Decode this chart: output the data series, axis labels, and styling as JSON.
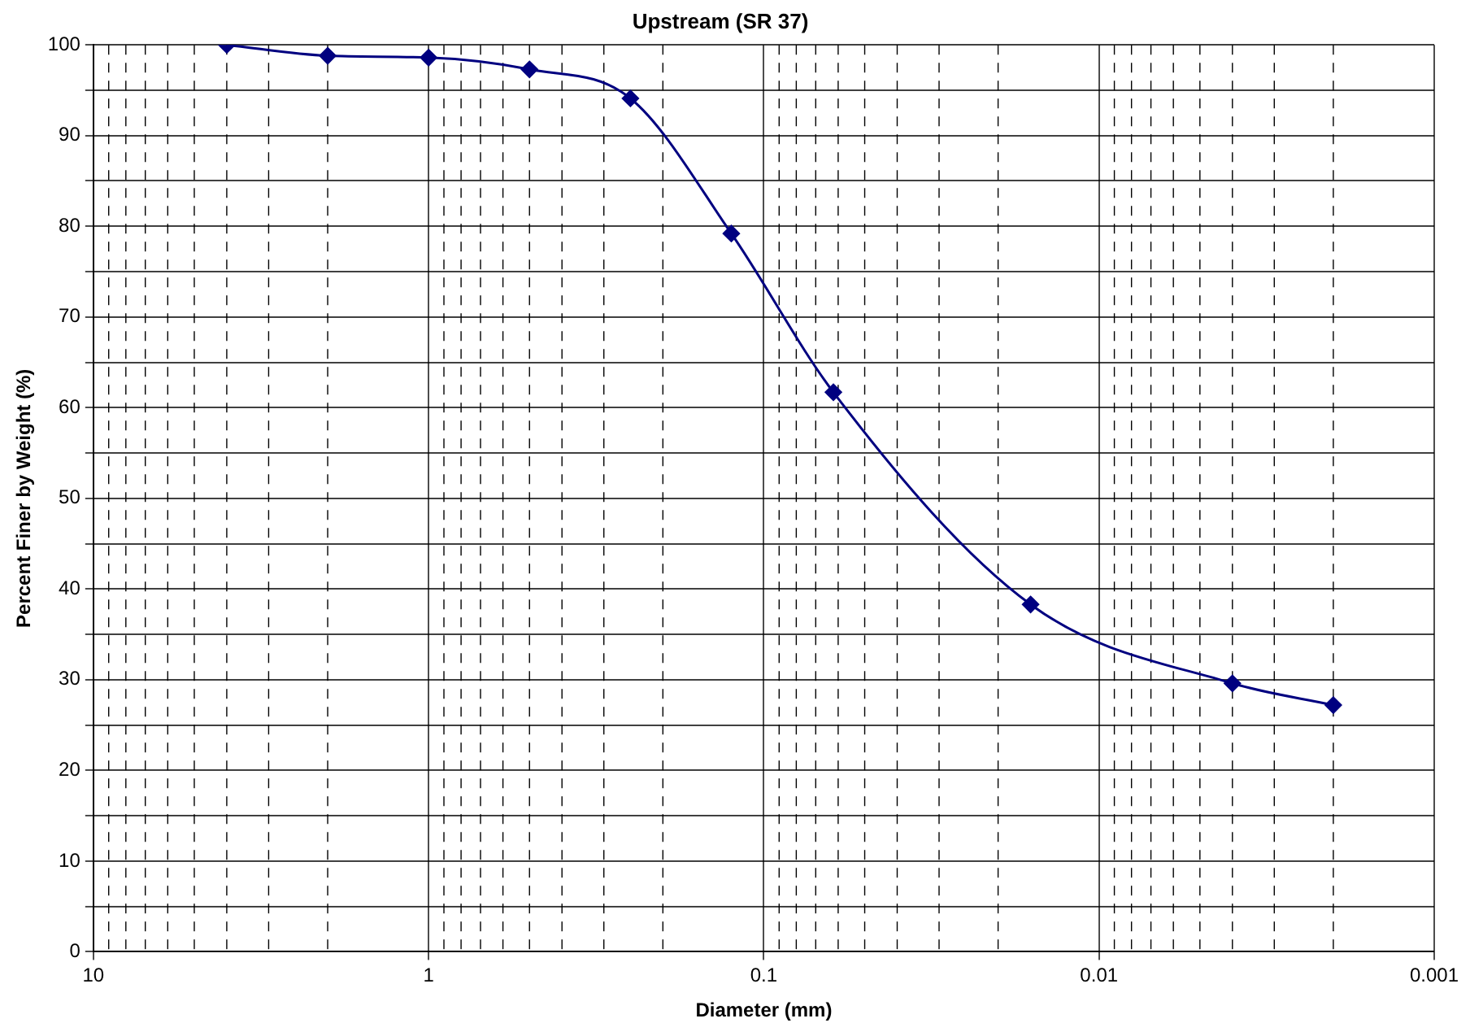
{
  "chart_data": {
    "type": "line",
    "title": "Upstream (SR 37)",
    "xlabel": "Diameter (mm)",
    "ylabel": "Percent Finer by Weight (%)",
    "x": [
      4,
      2,
      1,
      0.5,
      0.25,
      0.125,
      0.062,
      0.016,
      0.004,
      0.002
    ],
    "series": [
      {
        "color": "#000080",
        "values": [
          100,
          98.8,
          98.6,
          97.3,
          94.1,
          79.2,
          61.7,
          38.3,
          29.6,
          27.2
        ]
      }
    ],
    "log": "x",
    "xlim": [
      10,
      0.001
    ],
    "xticks": [
      10,
      {
        "value": 9,
        "label": null
      },
      {
        "value": 8,
        "label": null
      },
      {
        "value": 7,
        "label": null
      },
      {
        "value": 6,
        "label": null
      },
      {
        "value": 5,
        "label": null
      },
      {
        "value": 4,
        "label": null
      },
      {
        "value": 3,
        "label": null
      },
      {
        "value": 2,
        "label": null
      },
      1,
      {
        "value": 0.9,
        "label": null
      },
      {
        "value": 0.8,
        "label": null
      },
      {
        "value": 0.7,
        "label": null
      },
      {
        "value": 0.6,
        "label": null
      },
      {
        "value": 0.5,
        "label": null
      },
      {
        "value": 0.4,
        "label": null
      },
      {
        "value": 0.3,
        "label": null
      },
      {
        "value": 0.2,
        "label": null
      },
      0.1,
      {
        "value": 0.09,
        "label": null
      },
      {
        "value": 0.08,
        "label": null
      },
      {
        "value": 0.07,
        "label": null
      },
      {
        "value": 0.06,
        "label": null
      },
      {
        "value": 0.05,
        "label": null
      },
      {
        "value": 0.04,
        "label": null
      },
      {
        "value": 0.03,
        "label": null
      },
      {
        "value": 0.02,
        "label": null
      },
      0.01,
      {
        "value": 0.009,
        "label": null
      },
      {
        "value": 0.008,
        "label": null
      },
      {
        "value": 0.007,
        "label": null
      },
      {
        "value": 0.006,
        "label": null
      },
      {
        "value": 0.005,
        "label": null
      },
      {
        "value": 0.004,
        "label": null
      },
      {
        "value": 0.003,
        "label": null
      },
      {
        "value": 0.002,
        "label": null
      },
      0.001
    ],
    "ylim": [
      0,
      100
    ],
    "yticks": [
      0,
      {
        "value": 5,
        "label": null
      },
      10,
      {
        "value": 15,
        "label": null
      },
      20,
      {
        "value": 25,
        "label": null
      },
      30,
      {
        "value": 35,
        "label": null
      },
      40,
      {
        "value": 45,
        "label": null
      },
      50,
      {
        "value": 55,
        "label": null
      },
      60,
      {
        "value": 65,
        "label": null
      },
      70,
      {
        "value": 75,
        "label": null
      },
      80,
      {
        "value": 85,
        "label": null
      },
      90,
      {
        "value": 95,
        "label": null
      },
      100
    ],
    "grid": true,
    "legend": false,
    "marker": "diamond",
    "line_style": "solid"
  }
}
